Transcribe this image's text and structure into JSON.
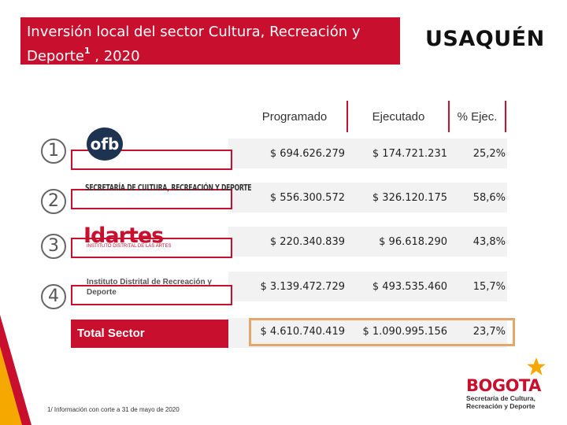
{
  "title": {
    "line1": "Inversión local del sector Cultura, Recreación y",
    "line2_prefix": "Deporte",
    "superscript": "1",
    "line2_suffix": " , 2020"
  },
  "brand": "USAQUÉN",
  "columns": {
    "programado": "Programado",
    "ejecutado": "Ejecutado",
    "pct": "% Ejec."
  },
  "entities": [
    {
      "number": "1",
      "logo_text": "ofb",
      "programado": "$ 694.626.279",
      "ejecutado": "$ 174.721.231",
      "pct": "25,2%"
    },
    {
      "number": "2",
      "logo_text": "SECRETARÍA DE CULTURA, RECREACIÓN Y DEPORTE",
      "programado": "$ 556.300.572",
      "ejecutado": "$ 326.120.175",
      "pct": "58,6%"
    },
    {
      "number": "3",
      "logo_text": "Idartes",
      "logo_sub": "INSTITUTO DISTRITAL DE LAS ARTES",
      "programado": "$ 220.340.839",
      "ejecutado": "$ 96.618.290",
      "pct": "43,8%"
    },
    {
      "number": "4",
      "logo_text": "Instituto Distrital de Recreación y Deporte",
      "programado": "$ 3.139.472.729",
      "ejecutado": "$ 493.535.460",
      "pct": "15,7%"
    }
  ],
  "total": {
    "label": "Total Sector",
    "programado": "$ 4.610.740.419",
    "ejecutado": "$ 1.090.995.156",
    "pct": "23,7%"
  },
  "footnote": "1/ Información con corte a 31 de mayo de 2020",
  "footer_logo": {
    "word": "BOGOTA",
    "sub1": "Secretaría de Cultura,",
    "sub2": "Recreación y Deporte"
  },
  "colors": {
    "accent": "#c8102e",
    "total_frame": "#e3a66b",
    "star_yellow": "#f5a800"
  }
}
